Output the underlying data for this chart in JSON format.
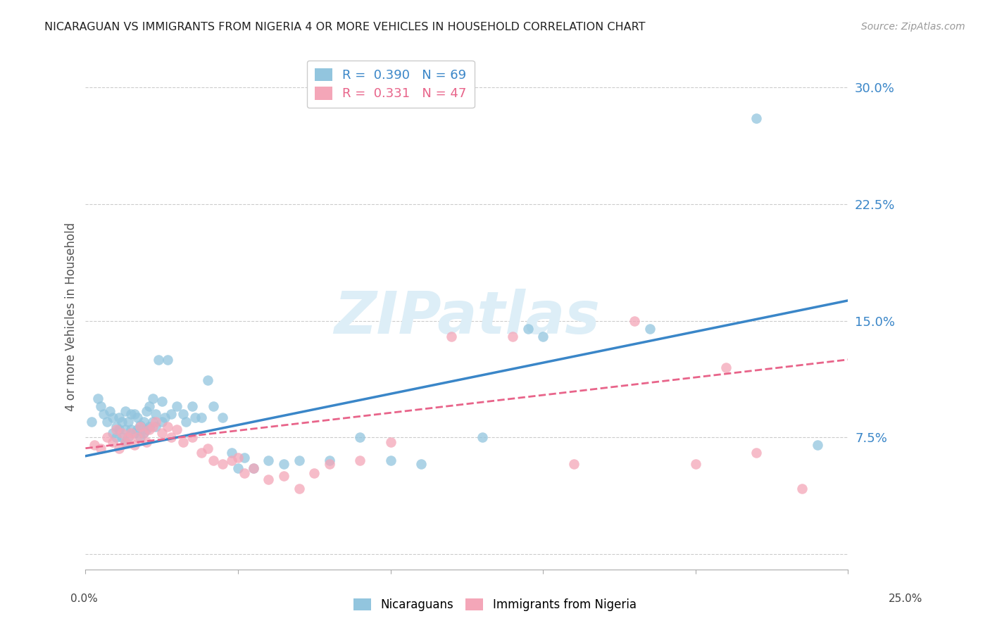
{
  "title": "NICARAGUAN VS IMMIGRANTS FROM NIGERIA 4 OR MORE VEHICLES IN HOUSEHOLD CORRELATION CHART",
  "source": "Source: ZipAtlas.com",
  "ylabel": "4 or more Vehicles in Household",
  "xmin": 0.0,
  "xmax": 0.25,
  "ymin": -0.01,
  "ymax": 0.315,
  "yticks": [
    0.0,
    0.075,
    0.15,
    0.225,
    0.3
  ],
  "ytick_labels": [
    "",
    "7.5%",
    "15.0%",
    "22.5%",
    "30.0%"
  ],
  "legend_R1": "0.390",
  "legend_N1": "69",
  "legend_R2": "0.331",
  "legend_N2": "47",
  "blue_color": "#92c5de",
  "pink_color": "#f4a6b8",
  "blue_line_color": "#3a86c8",
  "pink_line_color": "#e8648a",
  "watermark_color": "#ddeef7",
  "blue_line_start_y": 0.063,
  "blue_line_end_y": 0.163,
  "pink_line_start_y": 0.068,
  "pink_line_end_y": 0.125,
  "blue_scatter_x": [
    0.002,
    0.004,
    0.005,
    0.006,
    0.007,
    0.008,
    0.009,
    0.009,
    0.01,
    0.01,
    0.011,
    0.011,
    0.012,
    0.012,
    0.013,
    0.013,
    0.013,
    0.014,
    0.014,
    0.015,
    0.015,
    0.016,
    0.016,
    0.017,
    0.017,
    0.018,
    0.018,
    0.019,
    0.019,
    0.02,
    0.02,
    0.021,
    0.021,
    0.022,
    0.022,
    0.023,
    0.023,
    0.024,
    0.025,
    0.025,
    0.026,
    0.027,
    0.028,
    0.03,
    0.032,
    0.033,
    0.035,
    0.036,
    0.038,
    0.04,
    0.042,
    0.045,
    0.048,
    0.05,
    0.052,
    0.055,
    0.06,
    0.065,
    0.07,
    0.08,
    0.09,
    0.1,
    0.11,
    0.13,
    0.145,
    0.15,
    0.185,
    0.22,
    0.24
  ],
  "blue_scatter_y": [
    0.085,
    0.1,
    0.095,
    0.09,
    0.085,
    0.092,
    0.078,
    0.088,
    0.075,
    0.082,
    0.08,
    0.088,
    0.075,
    0.085,
    0.072,
    0.08,
    0.092,
    0.075,
    0.085,
    0.08,
    0.09,
    0.078,
    0.09,
    0.08,
    0.088,
    0.075,
    0.083,
    0.078,
    0.085,
    0.08,
    0.092,
    0.082,
    0.095,
    0.085,
    0.1,
    0.082,
    0.09,
    0.125,
    0.085,
    0.098,
    0.088,
    0.125,
    0.09,
    0.095,
    0.09,
    0.085,
    0.095,
    0.088,
    0.088,
    0.112,
    0.095,
    0.088,
    0.065,
    0.055,
    0.062,
    0.055,
    0.06,
    0.058,
    0.06,
    0.06,
    0.075,
    0.06,
    0.058,
    0.075,
    0.145,
    0.14,
    0.145,
    0.28,
    0.07
  ],
  "pink_scatter_x": [
    0.003,
    0.005,
    0.007,
    0.009,
    0.01,
    0.011,
    0.012,
    0.013,
    0.014,
    0.015,
    0.016,
    0.017,
    0.018,
    0.019,
    0.02,
    0.021,
    0.022,
    0.023,
    0.025,
    0.027,
    0.028,
    0.03,
    0.032,
    0.035,
    0.038,
    0.04,
    0.042,
    0.045,
    0.048,
    0.05,
    0.052,
    0.055,
    0.06,
    0.065,
    0.07,
    0.075,
    0.08,
    0.09,
    0.1,
    0.12,
    0.14,
    0.16,
    0.18,
    0.2,
    0.21,
    0.22,
    0.235
  ],
  "pink_scatter_y": [
    0.07,
    0.068,
    0.075,
    0.072,
    0.08,
    0.068,
    0.078,
    0.072,
    0.075,
    0.078,
    0.07,
    0.075,
    0.082,
    0.078,
    0.072,
    0.08,
    0.082,
    0.085,
    0.078,
    0.082,
    0.075,
    0.08,
    0.072,
    0.075,
    0.065,
    0.068,
    0.06,
    0.058,
    0.06,
    0.062,
    0.052,
    0.055,
    0.048,
    0.05,
    0.042,
    0.052,
    0.058,
    0.06,
    0.072,
    0.14,
    0.14,
    0.058,
    0.15,
    0.058,
    0.12,
    0.065,
    0.042
  ]
}
